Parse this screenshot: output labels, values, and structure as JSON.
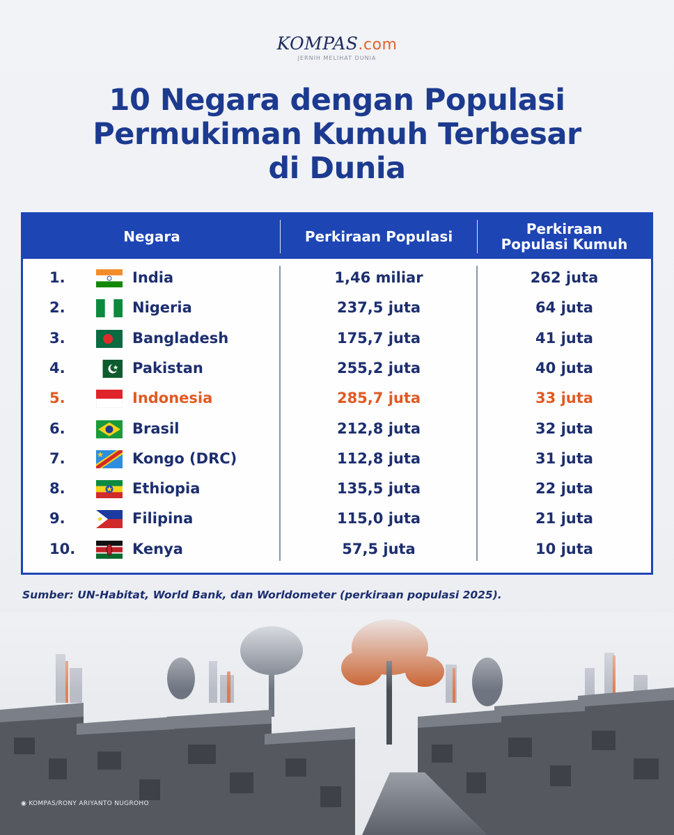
{
  "brand": {
    "name": "KOMPAS",
    "suffix": ".com",
    "tagline": "JERNIH MELIHAT DUNIA"
  },
  "title": [
    "10 Negara dengan Populasi",
    "Permukiman Kumuh Terbesar",
    "di Dunia"
  ],
  "table": {
    "headers": {
      "country": "Negara",
      "population": "Perkiraan Populasi",
      "slum_line1": "Perkiraan",
      "slum_line2": "Populasi Kumuh"
    },
    "rows": [
      {
        "rank": "1.",
        "flag": "india-flag",
        "country": "India",
        "population": "1,46 miliar",
        "slum": "262 juta"
      },
      {
        "rank": "2.",
        "flag": "nigeria-flag",
        "country": "Nigeria",
        "population": "237,5 juta",
        "slum": "64 juta"
      },
      {
        "rank": "3.",
        "flag": "bangladesh-flag",
        "country": "Bangladesh",
        "population": "175,7 juta",
        "slum": "41 juta"
      },
      {
        "rank": "4.",
        "flag": "pakistan-flag",
        "country": "Pakistan",
        "population": "255,2 juta",
        "slum": "40 juta"
      },
      {
        "rank": "5.",
        "flag": "indonesia-flag",
        "country": "Indonesia",
        "population": "285,7 juta",
        "slum": "33 juta",
        "highlight": true
      },
      {
        "rank": "6.",
        "flag": "brazil-flag",
        "country": "Brasil",
        "population": "212,8 juta",
        "slum": "32 juta"
      },
      {
        "rank": "7.",
        "flag": "drc-flag",
        "country": "Kongo (DRC)",
        "population": "112,8 juta",
        "slum": "31 juta"
      },
      {
        "rank": "8.",
        "flag": "ethiopia-flag",
        "country": "Ethiopia",
        "population": "135,5 juta",
        "slum": "22 juta"
      },
      {
        "rank": "9.",
        "flag": "philippines-flag",
        "country": "Filipina",
        "population": "115,0 juta",
        "slum": "21 juta"
      },
      {
        "rank": "10.",
        "flag": "kenya-flag",
        "country": "Kenya",
        "population": "57,5 juta",
        "slum": "10 juta"
      }
    ]
  },
  "source": "Sumber: UN-Habitat, World Bank, dan Worldometer (perkiraan populasi 2025).",
  "photo": {
    "icon": "camera-icon",
    "credit": "KOMPAS/RONY ARIYANTO NUGROHO"
  },
  "colors": {
    "accent": "#1e45b4",
    "title": "#1c3a8f",
    "text": "#1c2e6e",
    "highlight": "#e05a23"
  }
}
